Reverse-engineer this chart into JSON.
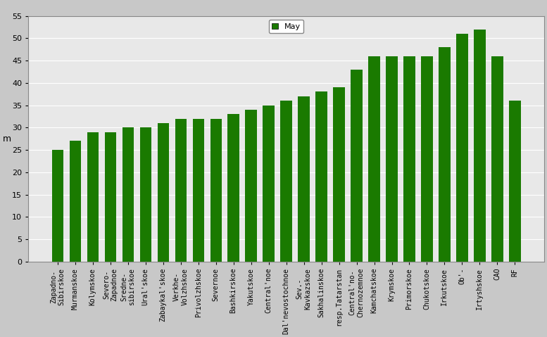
{
  "categories": [
    "Zapadno-\nSibirskoe",
    "Murmanskoe",
    "Kolymskoe",
    "Severo-\nZapadnoe",
    "Sredne-\nsibirskoe",
    "Ural'skoe",
    "Zabaykal'skoe",
    "Verkhe-\nVolzhskoe",
    "Privolzhskoe",
    "Severnoe",
    "Bashkirskoe",
    "Yakutskoe",
    "Central'noe",
    "Dal'nevostochnoe",
    "Sev.-\nKavkazskoe",
    "Sakhalinskoe",
    "resp.Tatarstan",
    "Central'no-\nChernozemnoe",
    "Kamchatskoe",
    "Krymskoe",
    "Primorskoe",
    "Chukotskoe",
    "Irkutskoe",
    "Ob'-",
    "Irtyshskoe",
    "CAO",
    "RF"
  ],
  "values": [
    25,
    27,
    29,
    29,
    30,
    30,
    31,
    32,
    32,
    32,
    33,
    34,
    35,
    36,
    37,
    38,
    39,
    43,
    46,
    46,
    46,
    46,
    48,
    51,
    52,
    46,
    36
  ],
  "bar_color": "#1a7a00",
  "ylabel": "m",
  "ylim": [
    0,
    55
  ],
  "yticks": [
    0,
    5,
    10,
    15,
    20,
    25,
    30,
    35,
    40,
    45,
    50,
    55
  ],
  "legend_label": "May",
  "bg_color": "#e8e8e8",
  "outer_bg": "#c8c8c8",
  "tick_fontsize": 8,
  "label_fontsize": 7
}
